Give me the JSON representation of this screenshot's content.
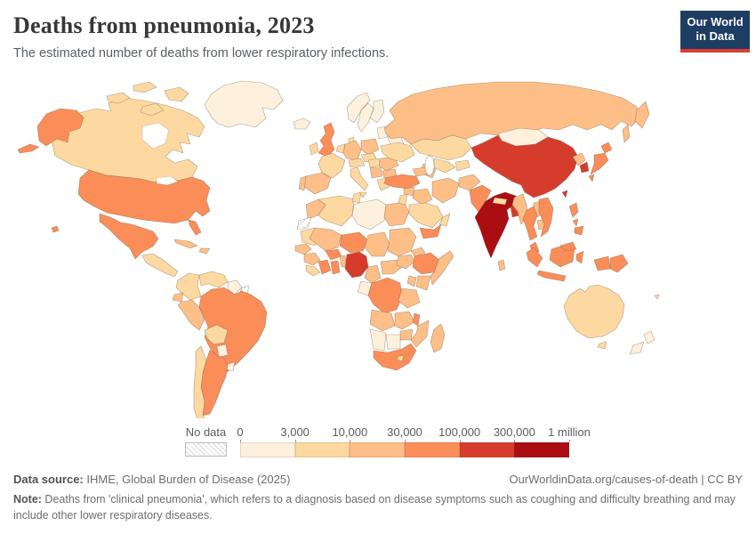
{
  "header": {
    "title": "Deaths from pneumonia, 2023",
    "subtitle": "The estimated number of deaths from lower respiratory infections.",
    "logo_line1": "Our World",
    "logo_line2": "in Data"
  },
  "legend": {
    "no_data_label": "No data",
    "tick_labels": [
      "0",
      "3,000",
      "10,000",
      "30,000",
      "100,000",
      "300,000",
      "1 million"
    ]
  },
  "footer": {
    "source_label": "Data source:",
    "source_text": " IHME, Global Burden of Disease (2025)",
    "link_text": "OurWorldinData.org/causes-of-death | CC BY",
    "note_label": "Note:",
    "note_text": " Deaths from 'clinical pneumonia', which refers to a diagnosis based on disease symptoms such as coughing and difficulty breathing and may include other lower respiratory diseases."
  },
  "chart_data": {
    "type": "heatmap",
    "subtype": "choropleth_world_map",
    "title": "Deaths from pneumonia, 2023",
    "unit": "estimated deaths from lower respiratory infections",
    "legend_position": "bottom",
    "legend_bins": [
      {
        "id": "b1",
        "range": "0-3,000",
        "color": "#fdf0dc"
      },
      {
        "id": "b2",
        "range": "3,000-10,000",
        "color": "#fdd9a1"
      },
      {
        "id": "b3",
        "range": "10,000-30,000",
        "color": "#fdbe87"
      },
      {
        "id": "b4",
        "range": "30,000-100,000",
        "color": "#fb8d59"
      },
      {
        "id": "b5",
        "range": "100,000-300,000",
        "color": "#d63c2c"
      },
      {
        "id": "b6",
        "range": "300,000-1 million",
        "color": "#aa0e12"
      },
      {
        "id": "no_data",
        "range": "No data",
        "color": "hatched"
      }
    ],
    "country_bins": {
      "greenland": "b1",
      "iceland": "b1",
      "canada": "b2",
      "usa": "b4",
      "mexico": "b4",
      "central_america": "b2",
      "cuba": "b3",
      "hispaniola": "b3",
      "colombia": "b2",
      "venezuela": "b2",
      "guyana": "b1",
      "french_guiana": "no_data",
      "ecuador": "b3",
      "peru": "b3",
      "brazil": "b4",
      "bolivia": "b2",
      "paraguay": "b1",
      "uruguay": "b1",
      "argentina": "b4",
      "chile": "b2",
      "morocco": "b3",
      "western_sahara": "no_data",
      "algeria": "b2",
      "tunisia": "b2",
      "libya": "b1",
      "egypt": "b3",
      "mauritania": "b2",
      "mali": "b3",
      "niger": "b4",
      "chad": "b3",
      "sudan": "b3",
      "eritrea": "b3",
      "senegal": "b3",
      "guinea": "b3",
      "sierra_leone": "b2",
      "cote_divoire": "b4",
      "ghana": "b4",
      "burkina_faso": "b4",
      "benin_togo": "b3",
      "nigeria": "b5",
      "cameroon": "b3",
      "car": "b3",
      "south_sudan": "b3",
      "ethiopia": "b4",
      "somalia": "b3",
      "kenya": "b3",
      "uganda": "b3",
      "gabon_congo": "b1",
      "drc": "b4",
      "tanzania": "b3",
      "angola": "b3",
      "zambia": "b3",
      "malawi": "b4",
      "mozambique": "b3",
      "zimbabwe": "b3",
      "namibia": "b1",
      "botswana": "b1",
      "south_africa": "b4",
      "lesotho": "b2",
      "madagascar": "b3",
      "uk": "b4",
      "ireland": "b2",
      "norway": "b1",
      "sweden": "b1",
      "finland": "b1",
      "denmark": "b2",
      "baltics": "b1",
      "belarus": "b1",
      "benelux": "b2",
      "germany": "b3",
      "poland": "b3",
      "czech_slovakia": "b2",
      "austria_switzerland": "b2",
      "france": "b2",
      "spain": "b3",
      "portugal": "b3",
      "italy": "b2",
      "hungary": "b2",
      "romania": "b3",
      "balkans": "b3",
      "bulgaria": "b3",
      "greece": "b2",
      "ukraine": "b2",
      "russia": "b3",
      "kazakhstan": "b2",
      "uzbekistan": "b2",
      "turkmenistan": "b3",
      "kyrgyz_tajik": "b2",
      "turkey": "b4",
      "caucasus": "b3",
      "syria": "b3",
      "iraq": "b3",
      "iran": "b3",
      "levant": "b2",
      "saudi_arabia": "b2",
      "yemen": "b4",
      "oman": "b2",
      "afghanistan": "b3",
      "pakistan": "b4",
      "india": "b6",
      "nepal": "b2",
      "bangladesh": "b5",
      "sri_lanka": "b3",
      "china": "b5",
      "mongolia": "b1",
      "taiwan": "b5",
      "north_korea": "b3",
      "south_korea": "b5",
      "japan": "b4",
      "myanmar": "b3",
      "thailand": "b4",
      "laos": "b3",
      "cambodia": "b3",
      "vietnam": "b4",
      "malaysia": "b4",
      "philippines": "b4",
      "indonesia": "b4",
      "png": "b4",
      "australia": "b2",
      "new_zealand": "b1",
      "fiji": "b2"
    }
  }
}
